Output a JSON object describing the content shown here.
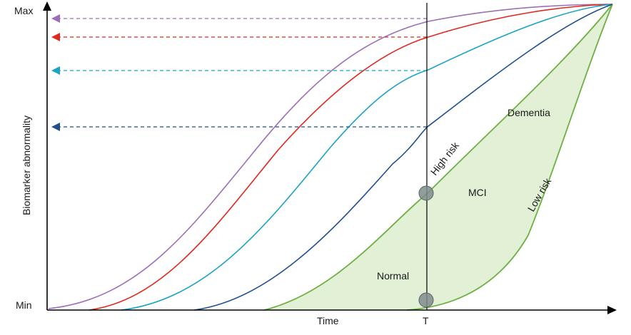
{
  "axes": {
    "y_label": "Biomarker abnormality",
    "y_max": "Max",
    "y_min": "Min",
    "x_label": "Time",
    "x_marker": "T"
  },
  "regions": {
    "normal": "Normal",
    "mci": "MCI",
    "dementia": "Dementia",
    "high_risk": "High risk",
    "low_risk": "Low risk"
  },
  "colors": {
    "purple": "#9b6fb5",
    "red": "#e0281f",
    "cyan": "#1ba3c4",
    "navy": "#1f4f8f",
    "green_line": "#6fb043",
    "green_fill": "#e2f0d6",
    "circle": "#7f8c8d"
  },
  "curves": [
    {
      "color_key": "purple"
    },
    {
      "color_key": "red"
    },
    {
      "color_key": "cyan"
    },
    {
      "color_key": "navy"
    }
  ]
}
